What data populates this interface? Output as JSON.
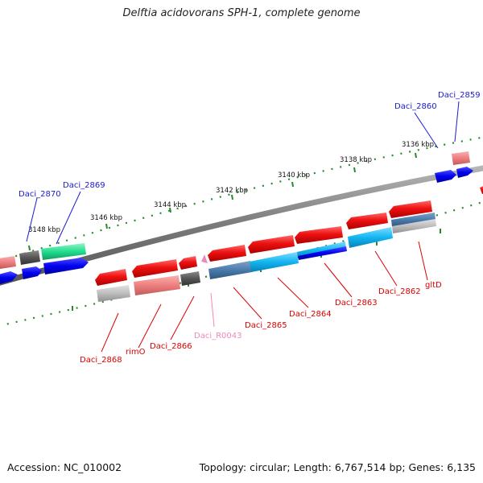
{
  "title": "Delftia acidovorans SPH-1, complete genome",
  "footer": {
    "accession": "Accession: NC_010002",
    "topology": "Topology: circular; Length: 6,767,514 bp; Genes: 6,135"
  },
  "scale_labels": [
    "3136 kbp",
    "3138 kbp",
    "3140 kbp",
    "3142 kbp",
    "3144 kbp",
    "3146 kbp",
    "3148 kbp"
  ],
  "gene_labels": {
    "forward": [
      "Daci_2859",
      "Daci_2860",
      "Daci_2869",
      "Daci_2870"
    ],
    "reverse": [
      "Daci_2862",
      "gltD",
      "Daci_2863",
      "Daci_2864",
      "Daci_2865",
      "Daci_R0043",
      "Daci_2866",
      "rimO",
      "Daci_2868"
    ]
  },
  "colors": {
    "forward_label": "#1a1ad0",
    "reverse_label": "#dd0000",
    "rna_label": "#ee88bb",
    "red_gene": "#ee1111",
    "blue_gene": "#0000ee",
    "cyan_gene": "#00aaee",
    "green_gene": "#11dd88",
    "tick_green": "#2a8a2a",
    "backbone": "#777777"
  }
}
